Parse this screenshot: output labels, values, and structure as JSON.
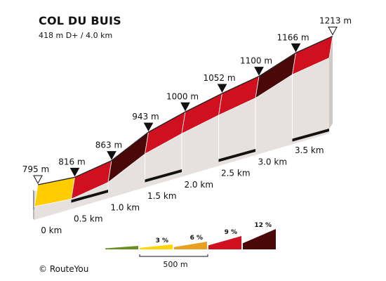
{
  "header": {
    "title": "COL DU BUIS",
    "subtitle": "418 m D+ / 4.0 km"
  },
  "footer": {
    "copyright": "© RouteYou"
  },
  "chart_data": {
    "type": "area",
    "x": [
      0,
      0.5,
      1.0,
      1.5,
      2.0,
      2.5,
      3.0,
      3.5,
      4.0
    ],
    "y": [
      795,
      816,
      863,
      943,
      1000,
      1052,
      1100,
      1166,
      1213
    ],
    "x_unit": "km",
    "y_unit": "m",
    "point_labels": [
      "795 m",
      "816 m",
      "863 m",
      "943 m",
      "1000 m",
      "1052 m",
      "1100 m",
      "1166 m",
      "1213 m"
    ],
    "x_tick_labels": [
      "0 km",
      "0.5 km",
      "1.0 km",
      "1.5 km",
      "2.0 km",
      "2.5 km",
      "3.0 km",
      "3.5 km"
    ],
    "segment_colors": [
      "#ffcc00",
      "#d0101f",
      "#4a0808",
      "#d0101f",
      "#d0101f",
      "#d0101f",
      "#4a0808",
      "#d0101f"
    ],
    "legend": {
      "items": [
        {
          "label": "",
          "color": "#6b8e23"
        },
        {
          "label": "3 %",
          "color": "#ffd700"
        },
        {
          "label": "6 %",
          "color": "#e8a020"
        },
        {
          "label": "9 %",
          "color": "#d0101f"
        },
        {
          "label": "12 %",
          "color": "#4a0808"
        }
      ],
      "scale_label": "500 m"
    }
  }
}
